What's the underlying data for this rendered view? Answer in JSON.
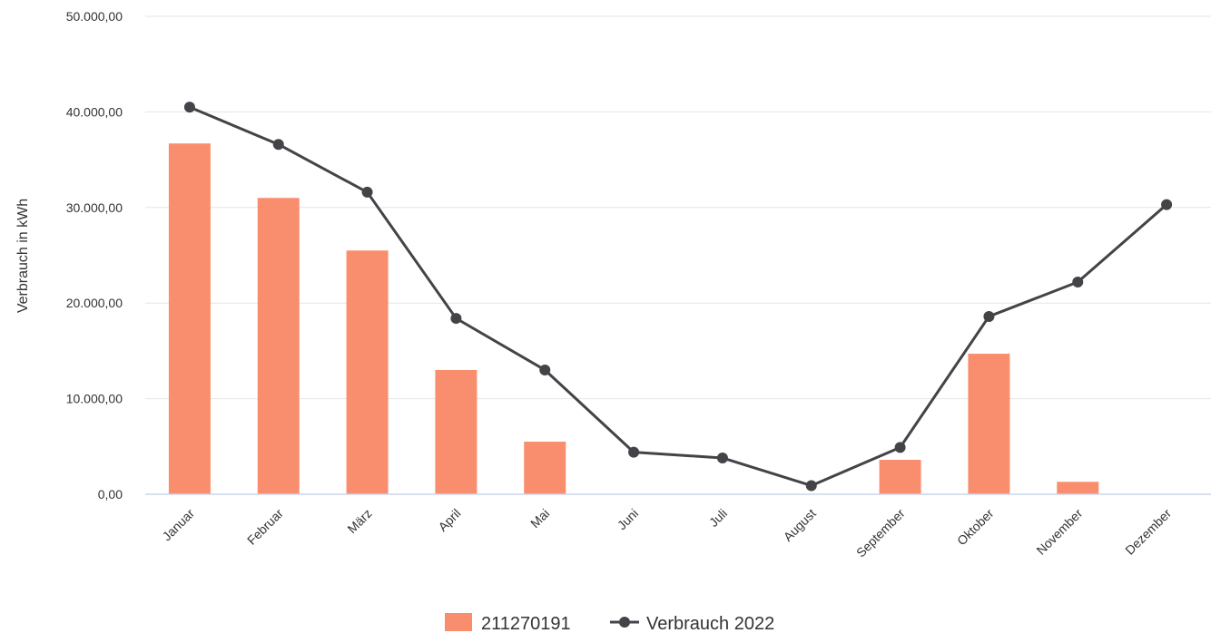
{
  "chart_data": {
    "type": "bar",
    "title": "",
    "xlabel": "",
    "ylabel": "Verbrauch in kWh",
    "ylim": [
      0,
      50000
    ],
    "yticks": [
      "0,00",
      "10.000,00",
      "20.000,00",
      "30.000,00",
      "40.000,00",
      "50.000,00"
    ],
    "ytick_values": [
      0,
      10000,
      20000,
      30000,
      40000,
      50000
    ],
    "grid": true,
    "legend_position": "bottom-center",
    "categories": [
      "Januar",
      "Februar",
      "März",
      "April",
      "Mai",
      "Juni",
      "Juli",
      "August",
      "September",
      "Oktober",
      "November",
      "Dezember"
    ],
    "series": [
      {
        "name": "211270191",
        "type": "bar",
        "color": "#f98e6f",
        "values": [
          36700,
          31000,
          25500,
          13000,
          5500,
          0,
          0,
          0,
          3600,
          14700,
          1300,
          0
        ]
      },
      {
        "name": "Verbrauch 2022",
        "type": "line",
        "color": "#434348",
        "values": [
          40500,
          36600,
          31600,
          18400,
          13000,
          4400,
          3800,
          900,
          4900,
          18600,
          22200,
          30300
        ]
      }
    ]
  }
}
